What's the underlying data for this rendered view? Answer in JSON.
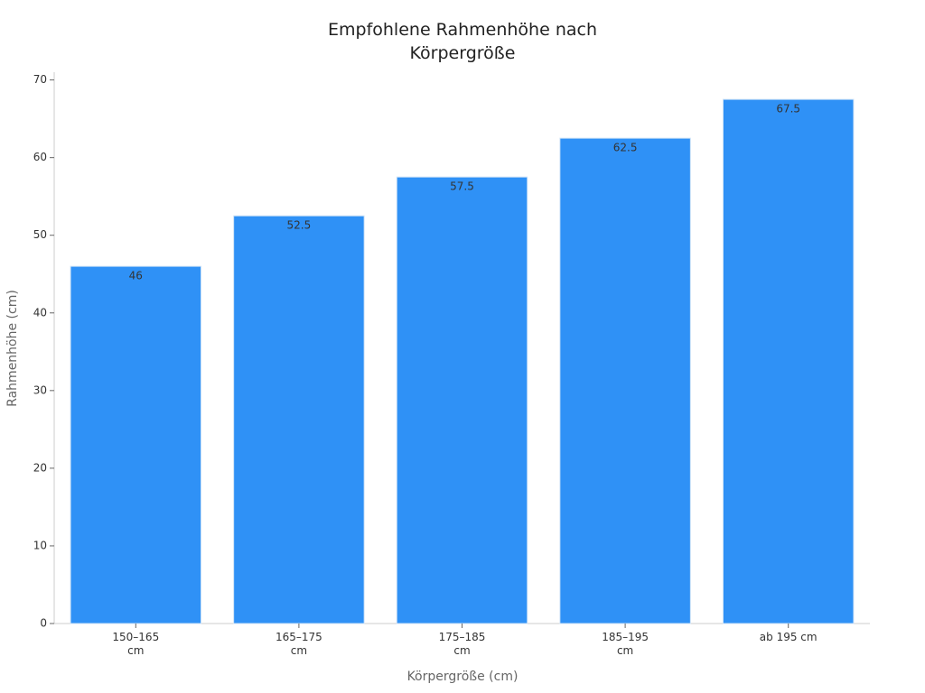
{
  "chart_data": {
    "type": "bar",
    "title": "Empfohlene Rahmenhöhe nach Körpergröße",
    "x_label": "Körpergröße (cm)",
    "y_label": "Rahmenhöhe (cm)",
    "categories": [
      "150–165 cm",
      "165–175 cm",
      "175–185 cm",
      "185–195 cm",
      "ab 195 cm"
    ],
    "values": [
      46,
      52.5,
      57.5,
      62.5,
      67.5
    ],
    "color": "#2f91f6",
    "ylim": [
      0,
      71
    ],
    "yticks": [
      0,
      10,
      20,
      30,
      40,
      50,
      60,
      70
    ],
    "grid": false
  }
}
